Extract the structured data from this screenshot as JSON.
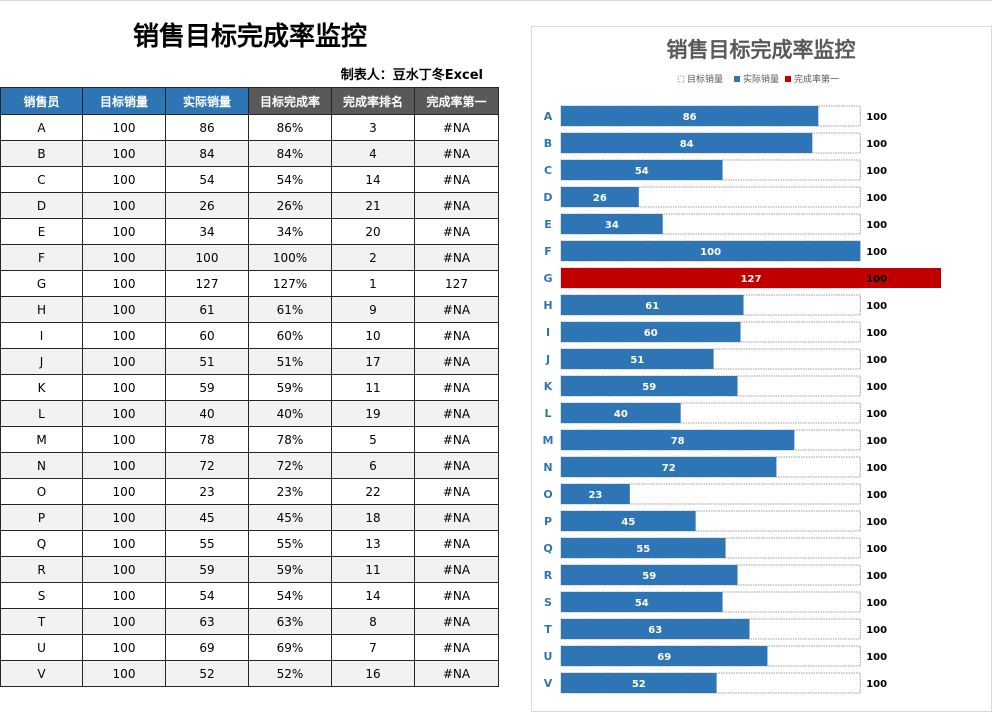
{
  "sheet": {
    "title": "销售目标完成率监控",
    "maker": "制表人：豆水丁冬Excel"
  },
  "table": {
    "headers": [
      "销售员",
      "目标销量",
      "实际销量",
      "目标完成率",
      "完成率排名",
      "完成率第一"
    ],
    "rows": [
      [
        "A",
        "100",
        "86",
        "86%",
        "3",
        "#NA"
      ],
      [
        "B",
        "100",
        "84",
        "84%",
        "4",
        "#NA"
      ],
      [
        "C",
        "100",
        "54",
        "54%",
        "14",
        "#NA"
      ],
      [
        "D",
        "100",
        "26",
        "26%",
        "21",
        "#NA"
      ],
      [
        "E",
        "100",
        "34",
        "34%",
        "20",
        "#NA"
      ],
      [
        "F",
        "100",
        "100",
        "100%",
        "2",
        "#NA"
      ],
      [
        "G",
        "100",
        "127",
        "127%",
        "1",
        "127"
      ],
      [
        "H",
        "100",
        "61",
        "61%",
        "9",
        "#NA"
      ],
      [
        "I",
        "100",
        "60",
        "60%",
        "10",
        "#NA"
      ],
      [
        "J",
        "100",
        "51",
        "51%",
        "17",
        "#NA"
      ],
      [
        "K",
        "100",
        "59",
        "59%",
        "11",
        "#NA"
      ],
      [
        "L",
        "100",
        "40",
        "40%",
        "19",
        "#NA"
      ],
      [
        "M",
        "100",
        "78",
        "78%",
        "5",
        "#NA"
      ],
      [
        "N",
        "100",
        "72",
        "72%",
        "6",
        "#NA"
      ],
      [
        "O",
        "100",
        "23",
        "23%",
        "22",
        "#NA"
      ],
      [
        "P",
        "100",
        "45",
        "45%",
        "18",
        "#NA"
      ],
      [
        "Q",
        "100",
        "55",
        "55%",
        "13",
        "#NA"
      ],
      [
        "R",
        "100",
        "59",
        "59%",
        "11",
        "#NA"
      ],
      [
        "S",
        "100",
        "54",
        "54%",
        "14",
        "#NA"
      ],
      [
        "T",
        "100",
        "63",
        "63%",
        "8",
        "#NA"
      ],
      [
        "U",
        "100",
        "69",
        "69%",
        "7",
        "#NA"
      ],
      [
        "V",
        "100",
        "52",
        "52%",
        "16",
        "#NA"
      ]
    ]
  },
  "chart_data": {
    "type": "bar",
    "orientation": "horizontal",
    "title": "销售目标完成率监控",
    "categories": [
      "A",
      "B",
      "C",
      "D",
      "E",
      "F",
      "G",
      "H",
      "I",
      "J",
      "K",
      "L",
      "M",
      "N",
      "O",
      "P",
      "Q",
      "R",
      "S",
      "T",
      "U",
      "V"
    ],
    "series": [
      {
        "name": "目标销量",
        "values": [
          100,
          100,
          100,
          100,
          100,
          100,
          100,
          100,
          100,
          100,
          100,
          100,
          100,
          100,
          100,
          100,
          100,
          100,
          100,
          100,
          100,
          100
        ],
        "color": "#ffffff",
        "border": "#7f7f7f"
      },
      {
        "name": "实际销量",
        "values": [
          86,
          84,
          54,
          26,
          34,
          100,
          127,
          61,
          60,
          51,
          59,
          40,
          78,
          72,
          23,
          45,
          55,
          59,
          54,
          63,
          69,
          52
        ],
        "color": "#2e75b6"
      },
      {
        "name": "完成率第一",
        "values": [
          null,
          null,
          null,
          null,
          null,
          null,
          127,
          null,
          null,
          null,
          null,
          null,
          null,
          null,
          null,
          null,
          null,
          null,
          null,
          null,
          null,
          null
        ],
        "color": "#c00000"
      }
    ],
    "xlim": [
      0,
      127
    ],
    "legend": "top",
    "grid": false
  },
  "colors": {
    "header_blue": "#2e75b6",
    "header_dark": "#595959",
    "category_label": "#2e75b6",
    "alt_row": "#f2f2f2"
  }
}
